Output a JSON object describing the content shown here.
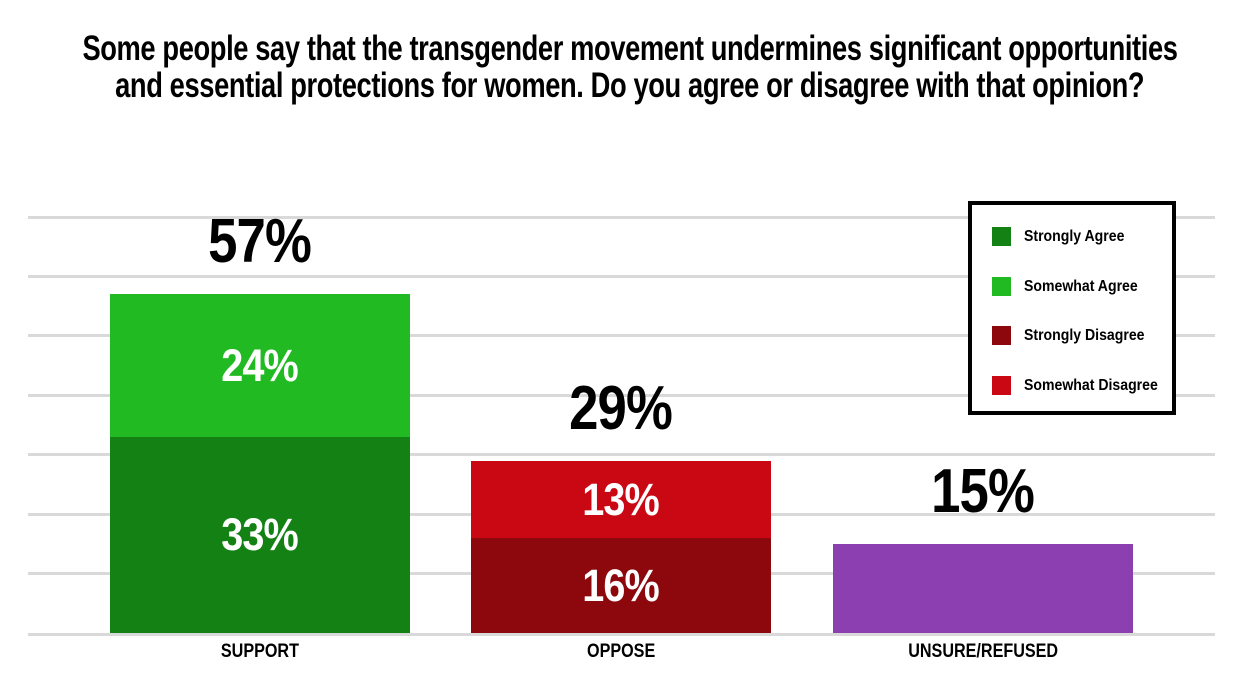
{
  "chart_data": {
    "type": "bar",
    "subtype": "stacked",
    "title": "Some people say that the transgender movement undermines significant opportunities and essential protections for women. Do you agree or disagree with that opinion?",
    "title_lines": [
      "Some people say that the transgender movement undermines significant opportunities",
      "and essential protections for women. Do you agree or disagree with that opinion?"
    ],
    "categories": [
      "SUPPORT",
      "OPPOSE",
      "UNSURE/REFUSED"
    ],
    "totals": [
      57,
      29,
      15
    ],
    "total_labels": [
      "57%",
      "29%",
      "15%"
    ],
    "series": [
      {
        "name": "Strongly Agree",
        "color": "#148114",
        "in_legend": true,
        "values": [
          33,
          0,
          0
        ],
        "labels": [
          "33%",
          "",
          ""
        ]
      },
      {
        "name": "Somewhat Agree",
        "color": "#22ba22",
        "in_legend": true,
        "values": [
          24,
          0,
          0
        ],
        "labels": [
          "24%",
          "",
          ""
        ]
      },
      {
        "name": "Strongly Disagree",
        "color": "#8c080d",
        "in_legend": true,
        "values": [
          0,
          16,
          0
        ],
        "labels": [
          "",
          "16%",
          ""
        ]
      },
      {
        "name": "Somewhat Disagree",
        "color": "#ca0813",
        "in_legend": true,
        "values": [
          0,
          13,
          0
        ],
        "labels": [
          "",
          "13%",
          ""
        ]
      },
      {
        "name": "Unsure/Refused",
        "color": "#8c3fb0",
        "in_legend": false,
        "values": [
          0,
          0,
          15
        ],
        "labels": [
          "",
          "",
          ""
        ]
      }
    ],
    "ylim": [
      0,
      70
    ],
    "gridline_step_pct": 10,
    "grid": "horizontal",
    "y_axis_tick_labels_shown": false,
    "legend_position": "top-right",
    "colors": {
      "background": "#ffffff",
      "grid": "#d9d9d9",
      "title_text": "#000000",
      "total_label_text": "#000000",
      "category_label_text": "#000000",
      "segment_label_text": "#ffffff",
      "legend_border": "#000000",
      "legend_background": "#ffffff"
    }
  }
}
